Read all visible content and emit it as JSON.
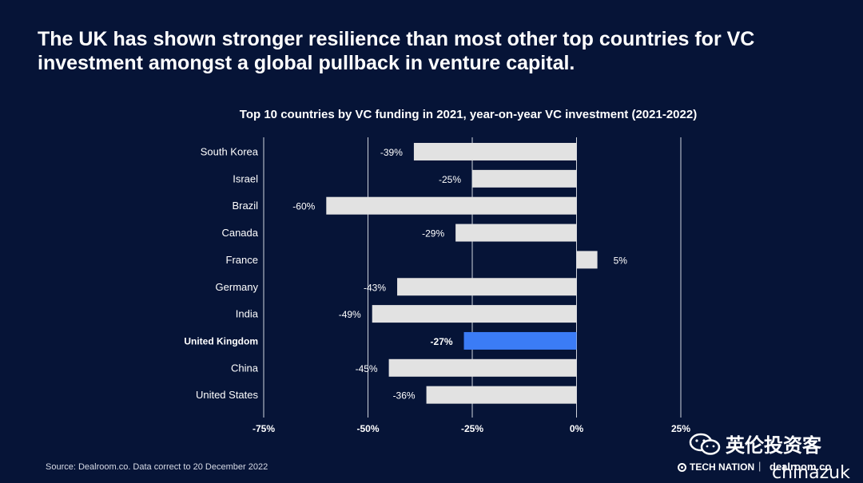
{
  "headline": "The UK has shown stronger resilience than most other top countries for VC investment amongst a global pullback in venture capital.",
  "chart_data": {
    "type": "bar",
    "orientation": "horizontal",
    "title": "Top 10 countries by VC funding in 2021, year-on-year VC investment (2021-2022)",
    "categories": [
      "South Korea",
      "Israel",
      "Brazil",
      "Canada",
      "France",
      "Germany",
      "India",
      "United Kingdom",
      "China",
      "United States"
    ],
    "values": [
      -39,
      -25,
      -60,
      -29,
      5,
      -43,
      -49,
      -27,
      -45,
      -36
    ],
    "value_labels": [
      "-39%",
      "-25%",
      "-60%",
      "-29%",
      "5%",
      "-43%",
      "-49%",
      "-27%",
      "-45%",
      "-36%"
    ],
    "highlight": "United Kingdom",
    "xlim": [
      -75,
      25
    ],
    "xticks": [
      -75,
      -50,
      -25,
      0,
      25
    ],
    "xtick_labels": [
      "-75%",
      "-50%",
      "-25%",
      "0%",
      "25%"
    ],
    "grid": "vertical",
    "colors": {
      "bar": "#e2e2e2",
      "highlight": "#3b7cf6",
      "grid": "#cfd3dc"
    }
  },
  "footer": {
    "source": "Source: Dealroom.co. Data correct to 20 December 2022",
    "brand_tech": "TECH NATION",
    "brand_sep": "|",
    "brand_dealroom": "dealroom.co"
  },
  "watermark": {
    "icon": "wechat-icon",
    "text": "英伦投资客",
    "handle": "chinazuk"
  }
}
